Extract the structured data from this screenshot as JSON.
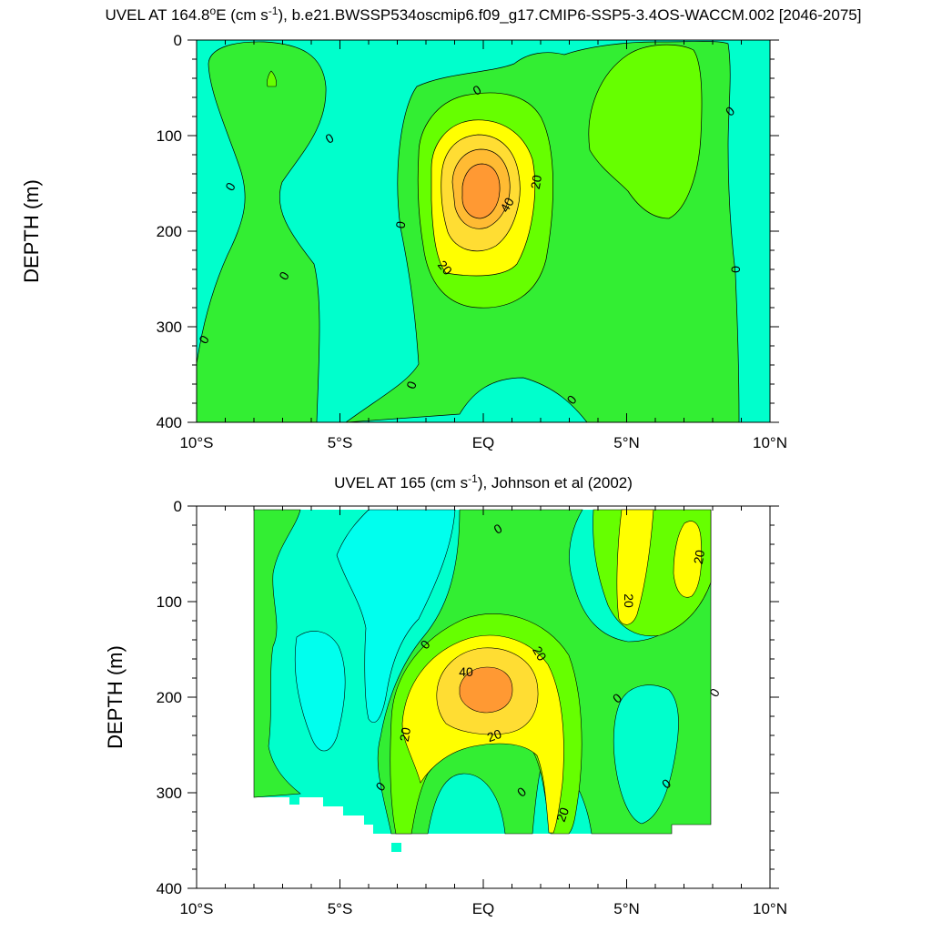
{
  "chart_data": [
    {
      "type": "contour",
      "title": {
        "pre": "UVEL AT 164.8",
        "sup1": "o",
        "mid": "E (cm s",
        "sup2": "-1",
        "post": "), b.e21.BWSSP534oscmip6.f09_g17.CMIP6-SSP5-3.4OS-WACCM.002 [2046-2075]"
      },
      "ylabel": "DEPTH (m)",
      "xlim": [
        -10,
        10
      ],
      "ylim": [
        0,
        400
      ],
      "y_inverted": true,
      "x_ticks": [
        {
          "value": -10,
          "label": "10°S"
        },
        {
          "value": -5,
          "label": "5°S"
        },
        {
          "value": 0,
          "label": "EQ"
        },
        {
          "value": 5,
          "label": "5°N"
        },
        {
          "value": 10,
          "label": "10°N"
        }
      ],
      "y_ticks": [
        0,
        100,
        200,
        300,
        400
      ],
      "levels": [
        -10,
        0,
        10,
        20,
        30,
        40,
        50
      ],
      "fill_colors": [
        "#00ffcc",
        "#33ee33",
        "#66ff00",
        "#ffff00",
        "#ffdd33",
        "#ffbb33",
        "#ff9933"
      ],
      "contour_labels": [
        "0",
        "0",
        "0",
        "0",
        "0",
        "0",
        "0",
        "0",
        "0",
        "0",
        "20",
        "40",
        "20"
      ],
      "features": [
        {
          "kind": "core",
          "lat": -0.1,
          "depth": 165,
          "max_value": 55
        },
        {
          "kind": "positive",
          "lat": 6.0,
          "depth": 100,
          "max_value": 15
        },
        {
          "kind": "positive",
          "lat": -7.5,
          "depth": 50,
          "max_value": 12
        }
      ]
    },
    {
      "type": "contour",
      "title": {
        "pre": "UVEL AT 165 (cm s",
        "sup": "-1",
        "post": "), Johnson et al (2002)"
      },
      "ylabel": "DEPTH (m)",
      "xlim": [
        -10,
        10
      ],
      "ylim": [
        0,
        400
      ],
      "y_inverted": true,
      "data_lat_range": [
        -8,
        8
      ],
      "max_data_depth": 350,
      "x_ticks": [
        {
          "value": -10,
          "label": "10°S"
        },
        {
          "value": -5,
          "label": "5°S"
        },
        {
          "value": 0,
          "label": "EQ"
        },
        {
          "value": 5,
          "label": "5°N"
        },
        {
          "value": 10,
          "label": "10°N"
        }
      ],
      "y_ticks": [
        0,
        100,
        200,
        300,
        400
      ],
      "levels": [
        -10,
        0,
        10,
        20,
        30,
        40
      ],
      "fill_colors": [
        "#00ffee",
        "#00ffcc",
        "#33ee33",
        "#66ff00",
        "#ffff00",
        "#ffdd33",
        "#ff9933"
      ],
      "contour_labels": [
        "0",
        "0",
        "0",
        "0",
        "0",
        "0",
        "0",
        "20",
        "20",
        "40",
        "20",
        "20",
        "20",
        "20"
      ],
      "features": [
        {
          "kind": "core",
          "lat": 0.0,
          "depth": 185,
          "max_value": 45
        },
        {
          "kind": "positive",
          "lat": 5.1,
          "depth": 60,
          "max_value": 25
        },
        {
          "kind": "positive",
          "lat": 7.3,
          "depth": 40,
          "max_value": 22
        }
      ]
    }
  ]
}
